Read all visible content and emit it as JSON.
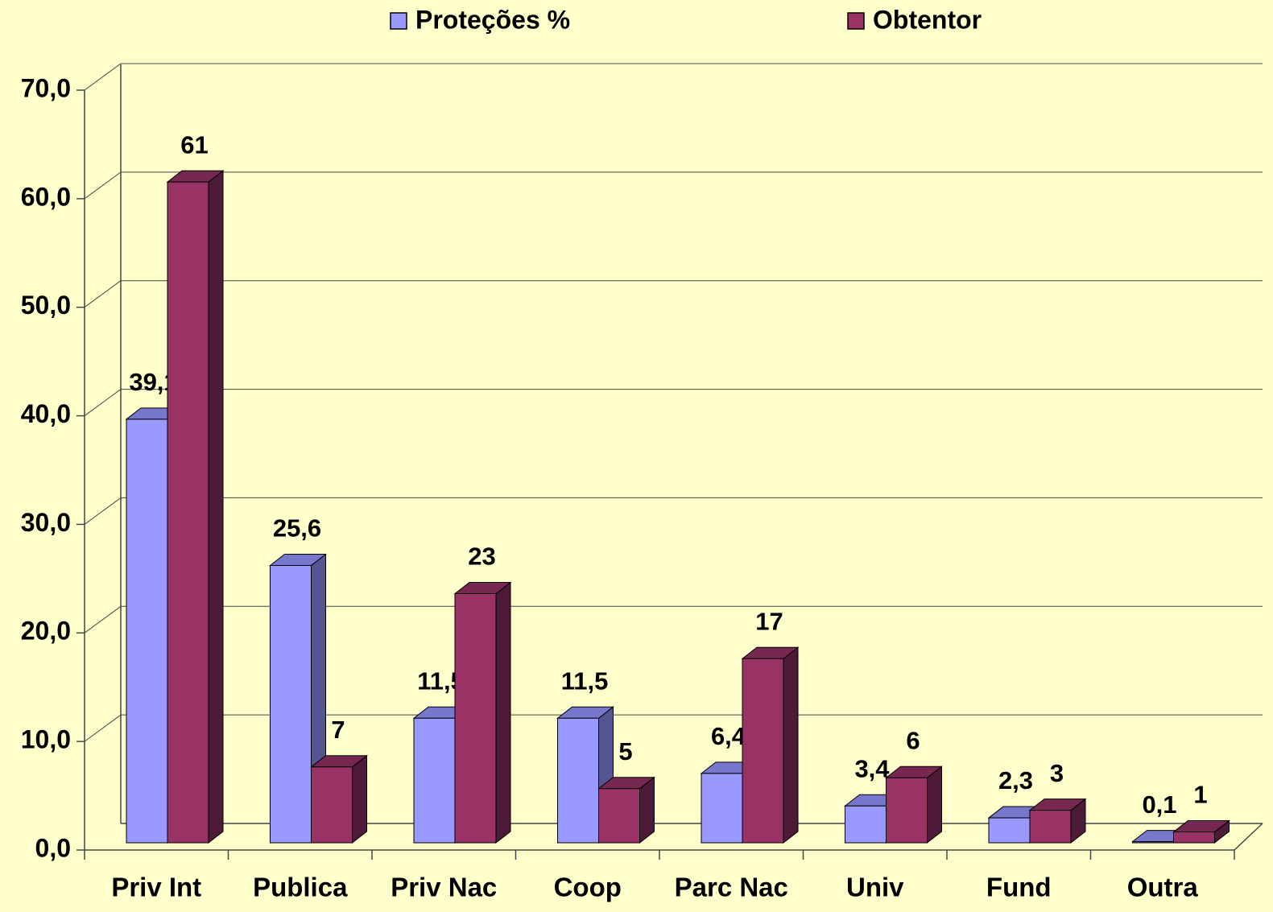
{
  "chart_data": {
    "type": "bar3d",
    "categories": [
      "Priv Int",
      "Publica",
      "Priv Nac",
      "Coop",
      "Parc Nac",
      "Univ",
      "Fund",
      "Outra"
    ],
    "series": [
      {
        "name": "Proteções %",
        "color": "#9999ff",
        "side": "#55558f",
        "top": "#7777cc",
        "values": [
          39.1,
          25.6,
          11.5,
          11.5,
          6.4,
          3.4,
          2.3,
          0.1
        ],
        "value_labels": [
          "39,1",
          "25,6",
          "11,5",
          "11,5",
          "6,4",
          "3,4",
          "2,3",
          "0,1"
        ]
      },
      {
        "name": "Obtentor",
        "color": "#993366",
        "side": "#4d1a38",
        "top": "#772850",
        "values": [
          61,
          7,
          23,
          5,
          17,
          6,
          3,
          1
        ]
      }
    ],
    "ylim": [
      0,
      70
    ],
    "yticks": [
      {
        "value": 0,
        "label": "0,0"
      },
      {
        "value": 10,
        "label": "10,0"
      },
      {
        "value": 20,
        "label": "20,0"
      },
      {
        "value": 30,
        "label": "30,0"
      },
      {
        "value": 40,
        "label": "40,0"
      },
      {
        "value": 50,
        "label": "50,0"
      },
      {
        "value": 60,
        "label": "60,0"
      },
      {
        "value": 70,
        "label": "70,0"
      }
    ],
    "grid": true,
    "legend": "top"
  }
}
